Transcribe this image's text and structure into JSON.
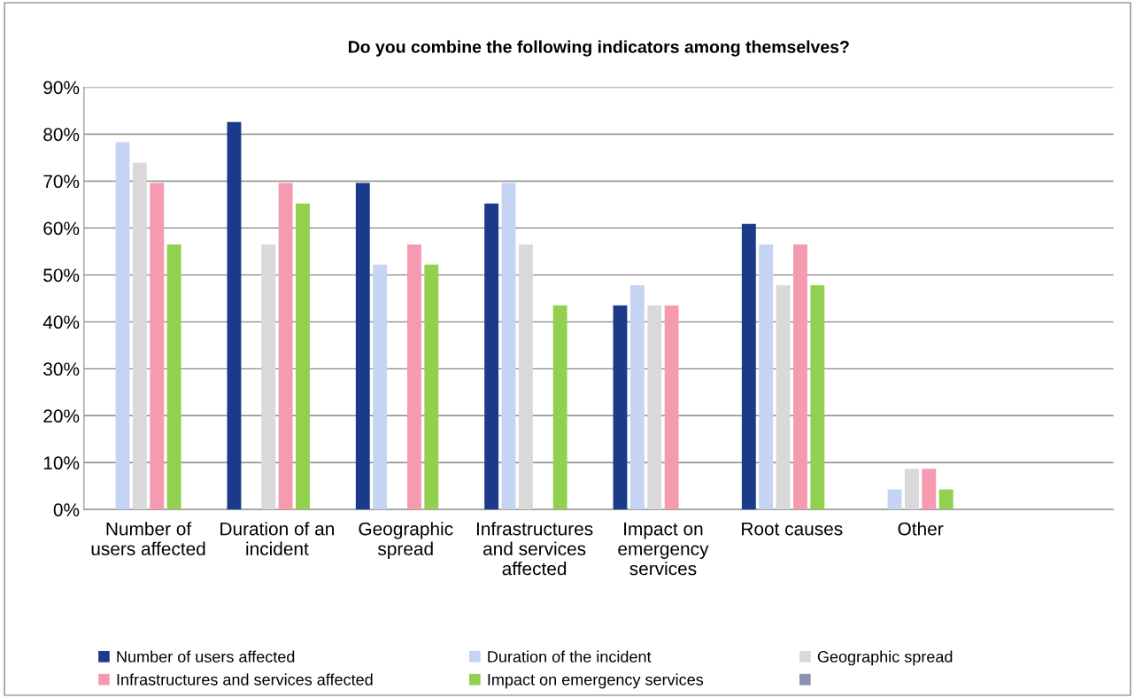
{
  "chart_data": {
    "type": "bar",
    "title": "Do you combine the following indicators among themselves?",
    "categories": [
      "Number of\nusers affected",
      "Duration of an\nincident",
      "Geographic\nspread",
      "Infrastructures\nand services\naffected",
      "Impact on\nemergency\nservices",
      "Root causes",
      "Other",
      null
    ],
    "series": [
      {
        "name": "Number of users affected",
        "color": "#1c3a8a",
        "values": [
          null,
          82.6,
          69.6,
          65.2,
          43.5,
          60.9,
          0,
          0
        ]
      },
      {
        "name": "Duration of the incident",
        "color": "#c5d4f3",
        "values": [
          78.3,
          null,
          52.2,
          69.6,
          47.8,
          56.5,
          4.3,
          0
        ]
      },
      {
        "name": "Geographic spread",
        "color": "#d9d9d9",
        "values": [
          73.9,
          56.5,
          null,
          56.5,
          43.5,
          47.8,
          8.7,
          0
        ]
      },
      {
        "name": "Infrastructures and services affected",
        "color": "#f59ab1",
        "values": [
          69.6,
          69.6,
          56.5,
          null,
          43.5,
          56.5,
          8.7,
          0
        ]
      },
      {
        "name": "Impact on emergency services",
        "color": "#92d050",
        "values": [
          56.5,
          65.2,
          52.2,
          43.5,
          null,
          47.8,
          4.3,
          0
        ]
      },
      {
        "color": "#8c90b3",
        "values": [
          0,
          0,
          0,
          0,
          0,
          0,
          0,
          0
        ]
      }
    ],
    "ylim": [
      0,
      90
    ],
    "yticks": [
      {
        "value": 0,
        "label": "0%"
      },
      {
        "value": 10,
        "label": "10%"
      },
      {
        "value": 20,
        "label": "20%"
      },
      {
        "value": 30,
        "label": "30%"
      },
      {
        "value": 40,
        "label": "40%"
      },
      {
        "value": 50,
        "label": "50%"
      },
      {
        "value": 60,
        "label": "60%"
      },
      {
        "value": 70,
        "label": "70%"
      },
      {
        "value": 80,
        "label": "80%"
      },
      {
        "value": 90,
        "label": "90%"
      }
    ],
    "grid": "y",
    "legend": "bottom"
  }
}
